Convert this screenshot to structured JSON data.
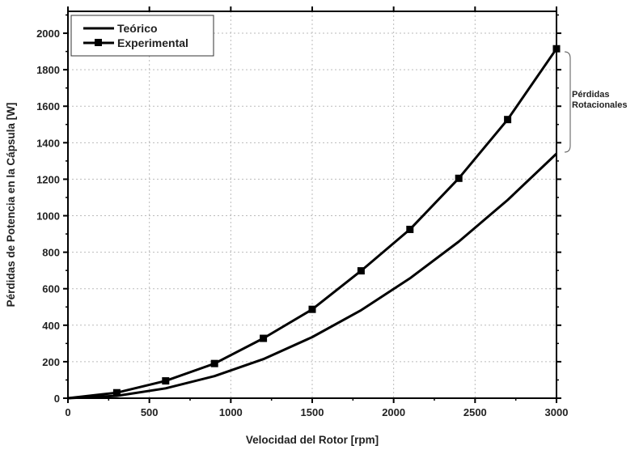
{
  "chart_data": {
    "type": "line",
    "xlabel": "Velocidad del Rotor [rpm]",
    "ylabel": "Pérdidas de Potencia en la Cápsula [W]",
    "xlim": [
      0,
      3000
    ],
    "ylim": [
      0,
      2120
    ],
    "xticks": [
      0,
      500,
      1000,
      1500,
      2000,
      2500,
      3000
    ],
    "yticks": [
      0,
      200,
      400,
      600,
      800,
      1000,
      1200,
      1400,
      1600,
      1800,
      2000
    ],
    "grid": true,
    "legend_placement": "top-left",
    "series": [
      {
        "name": "Teórico",
        "marker": "none",
        "x": [
          0,
          300,
          600,
          900,
          1200,
          1500,
          1800,
          2100,
          2400,
          2700,
          3000
        ],
        "y": [
          0,
          13,
          54,
          121,
          214,
          335,
          482,
          657,
          858,
          1086,
          1340
        ]
      },
      {
        "name": "Experimental",
        "marker": "square",
        "x": [
          0,
          300,
          600,
          900,
          1200,
          1500,
          1800,
          2100,
          2400,
          2700,
          3000
        ],
        "y": [
          0,
          30,
          95,
          190,
          328,
          487,
          698,
          925,
          1205,
          1527,
          1915
        ]
      }
    ],
    "annotation": {
      "line1": "Pérdidas",
      "line2": "Rotacionales"
    }
  }
}
